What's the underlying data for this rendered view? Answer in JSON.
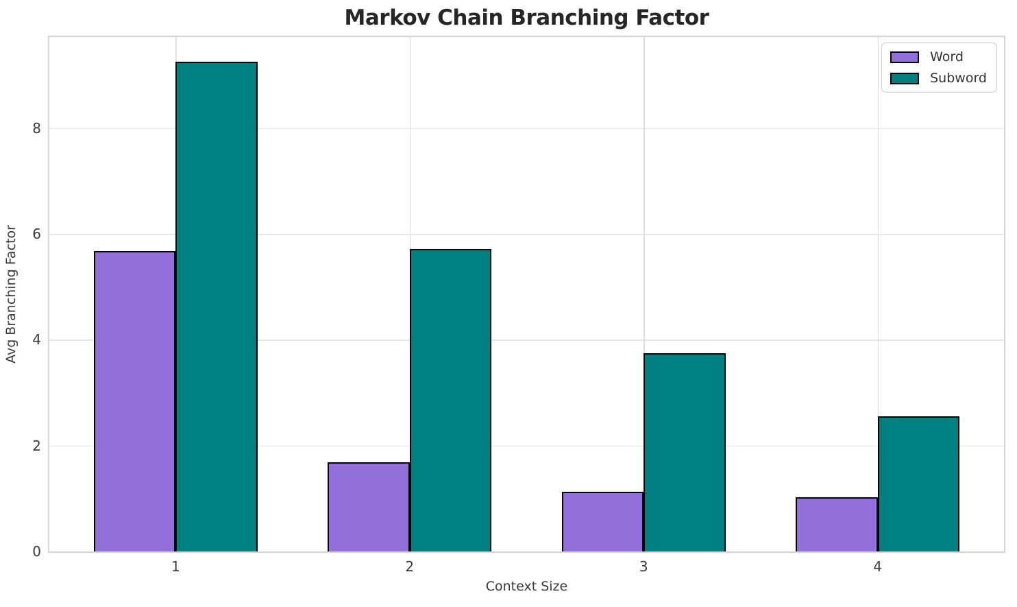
{
  "chart_data": {
    "type": "bar",
    "title": "Markov Chain Branching Factor",
    "xlabel": "Context Size",
    "ylabel": "Avg Branching Factor",
    "categories": [
      "1",
      "2",
      "3",
      "4"
    ],
    "series": [
      {
        "name": "Word",
        "color": "#9370DB",
        "values": [
          5.68,
          1.69,
          1.13,
          1.02
        ]
      },
      {
        "name": "Subword",
        "color": "#008080",
        "values": [
          9.25,
          5.71,
          3.74,
          2.55
        ]
      }
    ],
    "ylim": [
      0,
      9.72
    ],
    "yticks": [
      0,
      2,
      4,
      6,
      8
    ],
    "xlim": [
      0.46,
      4.54
    ],
    "x_positions": [
      1,
      2,
      3,
      4
    ],
    "bar_width": 0.35,
    "grid": true,
    "legend_position": "upper right",
    "bar_edge_color": "#000000",
    "grid_color": "#e6e6e6",
    "spine_color": "#d4d4d4",
    "title_color": "#262626",
    "tick_color": "#3a3a3a"
  }
}
